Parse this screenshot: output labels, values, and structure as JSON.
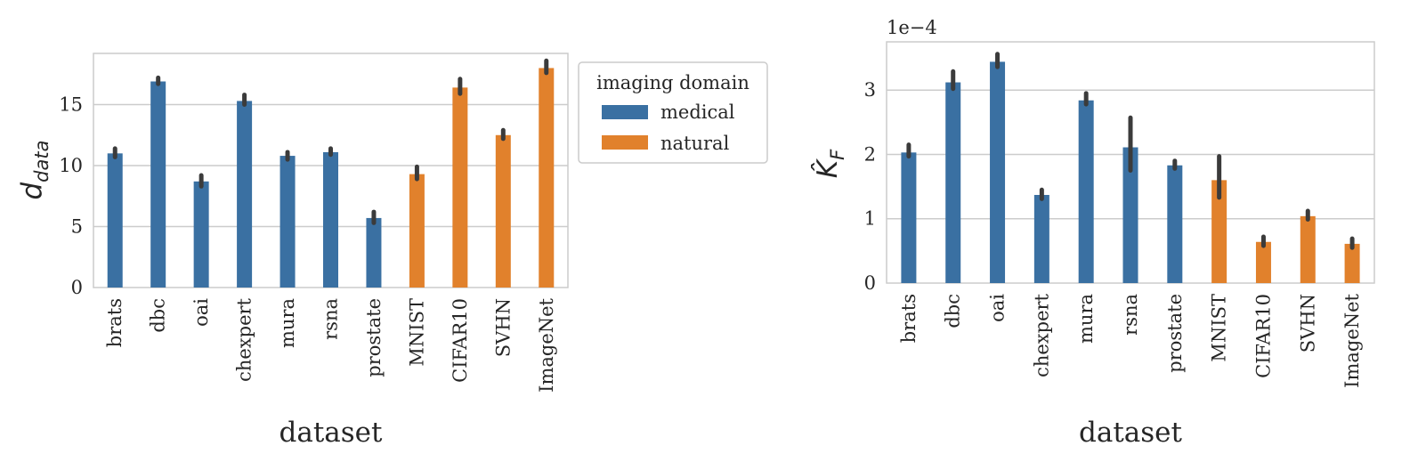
{
  "chart_data": [
    {
      "type": "bar",
      "categories": [
        "brats",
        "dbc",
        "oai",
        "chexpert",
        "mura",
        "rsna",
        "prostate",
        "MNIST",
        "CIFAR10",
        "SVHN",
        "ImageNet"
      ],
      "series": [
        {
          "name": "medical",
          "color": "#3a70a2",
          "values": [
            11.0,
            16.9,
            8.7,
            15.3,
            10.8,
            11.1,
            5.7,
            null,
            null,
            null,
            null
          ],
          "err_low": [
            10.7,
            16.7,
            8.3,
            15.0,
            10.5,
            10.9,
            5.3,
            null,
            null,
            null,
            null
          ],
          "err_high": [
            11.4,
            17.2,
            9.2,
            15.8,
            11.1,
            11.4,
            6.2,
            null,
            null,
            null,
            null
          ]
        },
        {
          "name": "natural",
          "color": "#e1812c",
          "values": [
            null,
            null,
            null,
            null,
            null,
            null,
            null,
            9.3,
            16.4,
            12.5,
            18.0
          ],
          "err_low": [
            null,
            null,
            null,
            null,
            null,
            null,
            null,
            8.9,
            15.9,
            12.2,
            17.6
          ],
          "err_high": [
            null,
            null,
            null,
            null,
            null,
            null,
            null,
            9.9,
            17.1,
            12.9,
            18.6
          ]
        }
      ],
      "xlabel": "dataset",
      "ylabel_main": "d",
      "ylabel_sub": "data",
      "ylim": [
        0,
        19.2
      ],
      "yticks": [
        0,
        5,
        10,
        15
      ],
      "grid": true,
      "legend": {
        "title": "imaging domain",
        "placement": "outside-right",
        "entries": [
          "medical",
          "natural"
        ]
      }
    },
    {
      "type": "bar",
      "categories": [
        "brats",
        "dbc",
        "oai",
        "chexpert",
        "mura",
        "rsna",
        "prostate",
        "MNIST",
        "CIFAR10",
        "SVHN",
        "ImageNet"
      ],
      "series": [
        {
          "name": "medical",
          "color": "#3a70a2",
          "values": [
            2.03,
            3.12,
            3.44,
            1.37,
            2.84,
            2.11,
            1.83,
            null,
            null,
            null,
            null
          ],
          "err_low": [
            1.97,
            3.02,
            3.36,
            1.31,
            2.78,
            1.75,
            1.78,
            null,
            null,
            null,
            null
          ],
          "err_high": [
            2.15,
            3.29,
            3.56,
            1.45,
            2.95,
            2.57,
            1.9,
            null,
            null,
            null,
            null
          ]
        },
        {
          "name": "natural",
          "color": "#e1812c",
          "values": [
            null,
            null,
            null,
            null,
            null,
            null,
            null,
            1.6,
            0.64,
            1.04,
            0.61
          ],
          "err_low": [
            null,
            null,
            null,
            null,
            null,
            null,
            null,
            1.33,
            0.58,
            0.99,
            0.55
          ],
          "err_high": [
            null,
            null,
            null,
            null,
            null,
            null,
            null,
            1.97,
            0.72,
            1.12,
            0.69
          ]
        }
      ],
      "xlabel": "dataset",
      "ylabel_main": "K̂",
      "ylabel_sub": "F",
      "offset_text": "1e−4",
      "ylim": [
        0,
        3.75
      ],
      "yticks": [
        0,
        1,
        2,
        3
      ],
      "grid": true
    }
  ]
}
